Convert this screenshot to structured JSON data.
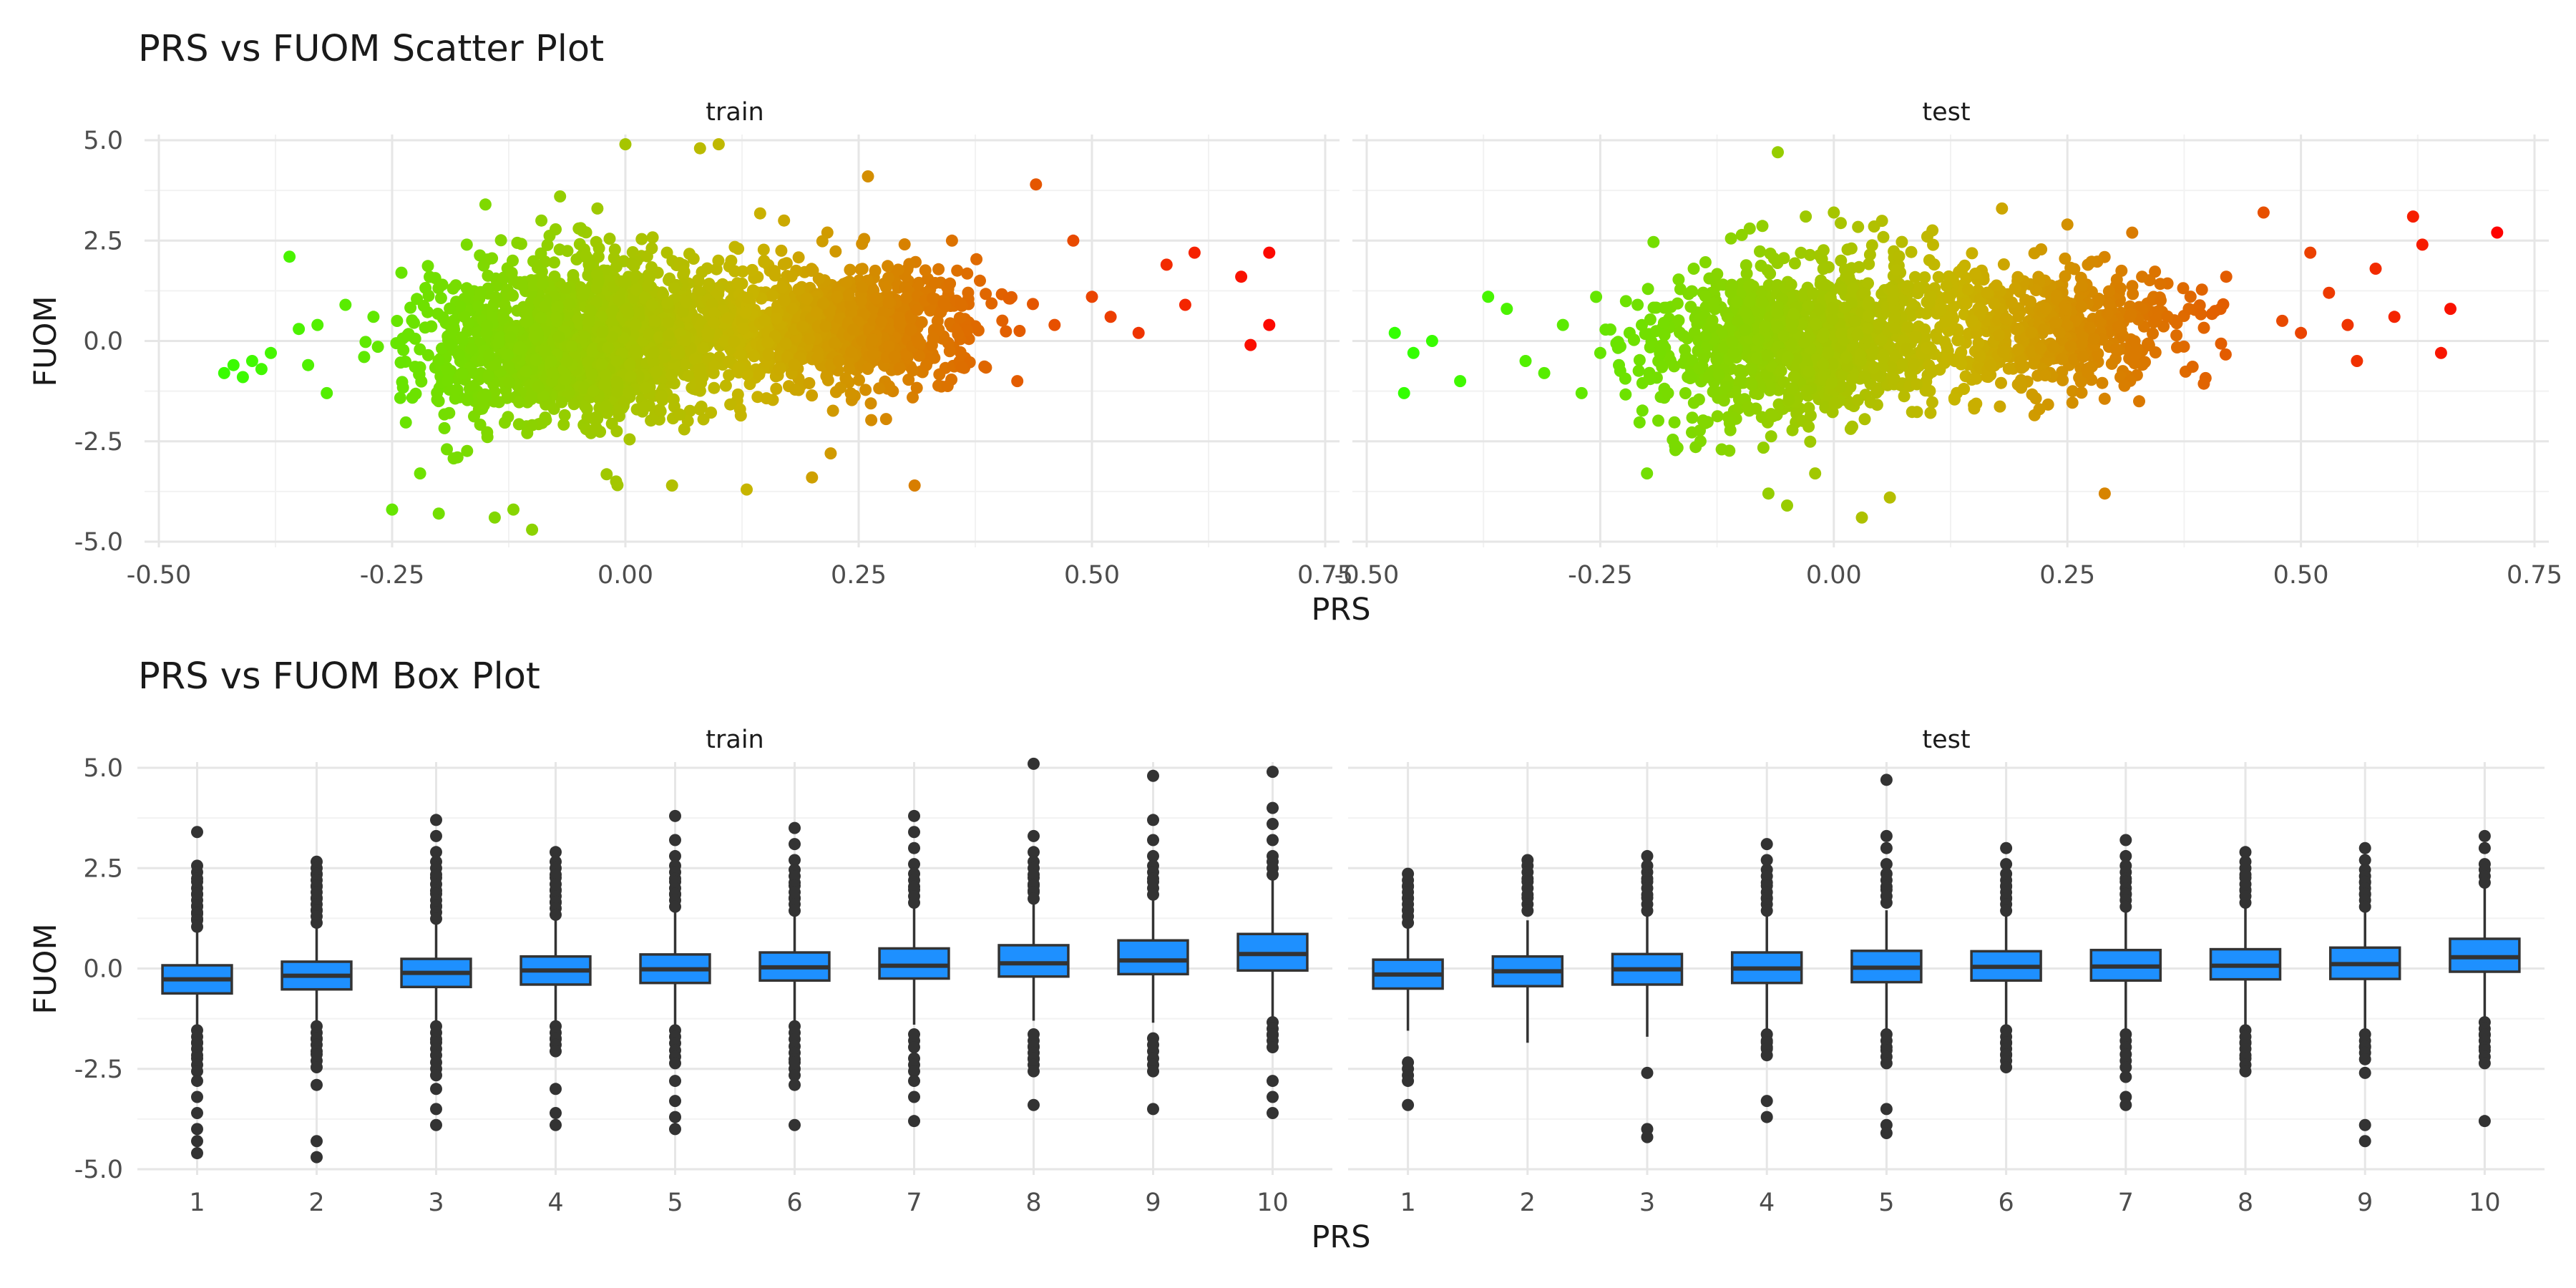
{
  "chart_data": [
    {
      "type": "scatter",
      "title": "PRS vs FUOM Scatter Plot",
      "xlabel": "PRS",
      "ylabel": "FUOM",
      "xlim": [
        -0.5,
        0.75
      ],
      "ylim": [
        -5.0,
        5.0
      ],
      "x_ticks": [
        "-0.50",
        "-0.25",
        "0.00",
        "0.25",
        "0.50",
        "0.75"
      ],
      "y_ticks": [
        "5.0",
        "2.5",
        "0.0",
        "-2.5",
        "-5.0"
      ],
      "grid": true,
      "legend": "none",
      "color_scale": {
        "low": "#33ff00",
        "mid": "#c8b400",
        "high": "#ff0000",
        "mapped_to": "PRS"
      },
      "facets": [
        {
          "name": "train",
          "description_points": [
            [
              -0.43,
              -0.8
            ],
            [
              -0.42,
              -0.6
            ],
            [
              -0.41,
              -0.9
            ],
            [
              -0.4,
              -0.5
            ],
            [
              -0.39,
              -0.7
            ],
            [
              -0.38,
              -0.3
            ],
            [
              -0.36,
              2.1
            ],
            [
              -0.35,
              0.3
            ],
            [
              -0.34,
              -0.6
            ],
            [
              -0.33,
              0.4
            ],
            [
              -0.32,
              -1.3
            ],
            [
              -0.3,
              0.9
            ],
            [
              -0.28,
              -0.4
            ],
            [
              -0.27,
              0.6
            ],
            [
              -0.25,
              -4.2
            ],
            [
              -0.24,
              1.7
            ],
            [
              -0.22,
              -3.3
            ],
            [
              -0.2,
              -4.3
            ],
            [
              -0.18,
              -2.9
            ],
            [
              -0.17,
              2.4
            ],
            [
              -0.15,
              3.4
            ],
            [
              -0.14,
              -4.4
            ],
            [
              -0.12,
              -4.2
            ],
            [
              -0.1,
              -4.7
            ],
            [
              -0.09,
              3.0
            ],
            [
              -0.07,
              3.6
            ],
            [
              -0.05,
              2.8
            ],
            [
              -0.03,
              3.3
            ],
            [
              -0.01,
              -3.5
            ],
            [
              0.0,
              4.9
            ],
            [
              0.05,
              -3.6
            ],
            [
              0.08,
              4.8
            ],
            [
              0.1,
              4.9
            ],
            [
              0.13,
              -3.7
            ],
            [
              0.17,
              3.0
            ],
            [
              0.2,
              -3.4
            ],
            [
              0.22,
              -2.8
            ],
            [
              0.26,
              4.1
            ],
            [
              0.31,
              -3.6
            ],
            [
              0.35,
              2.5
            ],
            [
              0.38,
              1.5
            ],
            [
              0.42,
              -1.0
            ],
            [
              0.44,
              3.9
            ],
            [
              0.46,
              0.4
            ],
            [
              0.48,
              2.5
            ],
            [
              0.5,
              1.1
            ],
            [
              0.52,
              0.6
            ],
            [
              0.55,
              0.2
            ],
            [
              0.58,
              1.9
            ],
            [
              0.6,
              0.9
            ],
            [
              0.61,
              2.2
            ],
            [
              0.66,
              1.6
            ],
            [
              0.67,
              -0.1
            ],
            [
              0.69,
              2.2
            ],
            [
              0.69,
              0.4
            ]
          ]
        },
        {
          "name": "test",
          "description_points": [
            [
              -0.47,
              0.2
            ],
            [
              -0.46,
              -1.3
            ],
            [
              -0.45,
              -0.3
            ],
            [
              -0.43,
              0.0
            ],
            [
              -0.4,
              -1.0
            ],
            [
              -0.37,
              1.1
            ],
            [
              -0.35,
              0.8
            ],
            [
              -0.33,
              -0.5
            ],
            [
              -0.31,
              -0.8
            ],
            [
              -0.29,
              0.4
            ],
            [
              -0.27,
              -1.3
            ],
            [
              -0.25,
              -0.3
            ],
            [
              -0.23,
              -0.6
            ],
            [
              -0.21,
              0.9
            ],
            [
              -0.2,
              -3.3
            ],
            [
              -0.17,
              -2.6
            ],
            [
              -0.15,
              1.8
            ],
            [
              -0.12,
              -2.7
            ],
            [
              -0.09,
              2.8
            ],
            [
              -0.07,
              -3.8
            ],
            [
              -0.06,
              4.7
            ],
            [
              -0.05,
              -4.1
            ],
            [
              -0.03,
              3.1
            ],
            [
              -0.02,
              -3.3
            ],
            [
              0.0,
              3.2
            ],
            [
              0.03,
              -4.4
            ],
            [
              0.06,
              -3.9
            ],
            [
              0.1,
              2.6
            ],
            [
              0.15,
              -1.6
            ],
            [
              0.18,
              3.3
            ],
            [
              0.22,
              -1.7
            ],
            [
              0.25,
              2.9
            ],
            [
              0.29,
              -3.8
            ],
            [
              0.33,
              1.6
            ],
            [
              0.38,
              0.8
            ],
            [
              0.42,
              1.6
            ],
            [
              0.46,
              3.2
            ],
            [
              0.48,
              0.5
            ],
            [
              0.5,
              0.2
            ],
            [
              0.51,
              2.2
            ],
            [
              0.53,
              1.2
            ],
            [
              0.55,
              0.4
            ],
            [
              0.56,
              -0.5
            ],
            [
              0.58,
              1.8
            ],
            [
              0.6,
              0.6
            ],
            [
              0.62,
              3.1
            ],
            [
              0.63,
              2.4
            ],
            [
              0.65,
              -0.3
            ],
            [
              0.66,
              0.8
            ],
            [
              0.71,
              2.7
            ]
          ]
        }
      ]
    },
    {
      "type": "box",
      "title": "PRS vs FUOM Box Plot",
      "xlabel": "PRS",
      "ylabel": "FUOM",
      "categories": [
        "1",
        "2",
        "3",
        "4",
        "5",
        "6",
        "7",
        "8",
        "9",
        "10"
      ],
      "ylim": [
        -5.0,
        5.0
      ],
      "y_ticks": [
        "5.0",
        "2.5",
        "0.0",
        "-2.5",
        "-5.0"
      ],
      "grid": true,
      "box_color": "#1e90ff",
      "facets": [
        {
          "name": "train",
          "boxes": [
            {
              "q1": -0.62,
              "median": -0.27,
              "q3": 0.08,
              "whisker_low": -1.65,
              "whisker_high": 1.1,
              "outliers": [
                3.4,
                2.4,
                2.0,
                1.7,
                1.4,
                1.2,
                -1.7,
                -2.0,
                -2.4,
                -2.8,
                -3.2,
                -3.6,
                -4.0,
                -4.3,
                -4.6
              ]
            },
            {
              "q1": -0.52,
              "median": -0.18,
              "q3": 0.17,
              "whisker_low": -1.5,
              "whisker_high": 1.2,
              "outliers": [
                2.5,
                2.2,
                1.9,
                1.6,
                1.3,
                -1.6,
                -1.9,
                -2.3,
                -2.9,
                -4.3,
                -4.7
              ]
            },
            {
              "q1": -0.46,
              "median": -0.11,
              "q3": 0.24,
              "whisker_low": -1.45,
              "whisker_high": 1.25,
              "outliers": [
                3.7,
                3.3,
                2.9,
                2.5,
                2.1,
                1.7,
                1.4,
                -1.6,
                -2.0,
                -2.5,
                -3.0,
                -3.5,
                -3.9
              ]
            },
            {
              "q1": -0.4,
              "median": -0.05,
              "q3": 0.3,
              "whisker_low": -1.35,
              "whisker_high": 1.3,
              "outliers": [
                2.9,
                2.5,
                2.1,
                1.8,
                1.5,
                -1.6,
                -1.9,
                -3.0,
                -3.6,
                -3.9
              ]
            },
            {
              "q1": -0.36,
              "median": -0.02,
              "q3": 0.35,
              "whisker_low": -1.4,
              "whisker_high": 1.4,
              "outliers": [
                3.8,
                3.2,
                2.8,
                2.4,
                2.0,
                1.7,
                -1.7,
                -2.2,
                -2.8,
                -3.3,
                -3.7,
                -4.0
              ]
            },
            {
              "q1": -0.3,
              "median": 0.03,
              "q3": 0.4,
              "whisker_low": -1.35,
              "whisker_high": 1.45,
              "outliers": [
                3.5,
                3.1,
                2.7,
                2.3,
                1.9,
                1.6,
                -1.6,
                -2.1,
                -2.5,
                -2.9,
                -3.9
              ]
            },
            {
              "q1": -0.25,
              "median": 0.07,
              "q3": 0.5,
              "whisker_low": -1.4,
              "whisker_high": 1.55,
              "outliers": [
                3.8,
                3.4,
                3.0,
                2.6,
                2.2,
                1.8,
                -1.8,
                -2.4,
                -2.8,
                -3.2,
                -3.8
              ]
            },
            {
              "q1": -0.2,
              "median": 0.13,
              "q3": 0.58,
              "whisker_low": -1.3,
              "whisker_high": 1.7,
              "outliers": [
                5.1,
                3.3,
                2.9,
                2.5,
                2.1,
                1.9,
                -1.8,
                -2.1,
                -2.4,
                -3.4
              ]
            },
            {
              "q1": -0.14,
              "median": 0.2,
              "q3": 0.7,
              "whisker_low": -1.35,
              "whisker_high": 1.8,
              "outliers": [
                4.8,
                3.7,
                3.2,
                2.8,
                2.4,
                2.0,
                -1.9,
                -2.4,
                -3.5
              ]
            },
            {
              "q1": -0.05,
              "median": 0.36,
              "q3": 0.86,
              "whisker_low": -1.4,
              "whisker_high": 2.2,
              "outliers": [
                4.9,
                4.0,
                3.6,
                3.2,
                2.8,
                2.5,
                -1.5,
                -1.8,
                -2.8,
                -3.2,
                -3.6
              ]
            }
          ]
        },
        {
          "name": "test",
          "boxes": [
            {
              "q1": -0.5,
              "median": -0.15,
              "q3": 0.22,
              "whisker_low": -1.55,
              "whisker_high": 1.15,
              "outliers": [
                2.2,
                1.9,
                1.6,
                1.3,
                -2.5,
                -2.8,
                -3.4
              ]
            },
            {
              "q1": -0.44,
              "median": -0.07,
              "q3": 0.3,
              "whisker_low": -1.85,
              "whisker_high": 1.2,
              "outliers": [
                2.7,
                2.4,
                2.0,
                1.6
              ]
            },
            {
              "q1": -0.4,
              "median": -0.02,
              "q3": 0.36,
              "whisker_low": -1.7,
              "whisker_high": 1.3,
              "outliers": [
                2.8,
                2.4,
                2.0,
                1.6,
                -2.6,
                -4.0,
                -4.2
              ]
            },
            {
              "q1": -0.36,
              "median": 0.0,
              "q3": 0.4,
              "whisker_low": -1.6,
              "whisker_high": 1.4,
              "outliers": [
                3.1,
                2.7,
                2.3,
                1.9,
                1.6,
                -1.8,
                -2.0,
                -3.3,
                -3.7
              ]
            },
            {
              "q1": -0.34,
              "median": 0.02,
              "q3": 0.44,
              "whisker_low": -1.6,
              "whisker_high": 1.45,
              "outliers": [
                4.7,
                3.3,
                3.0,
                2.6,
                2.2,
                1.8,
                -1.8,
                -2.2,
                -3.5,
                -3.9,
                -4.1
              ]
            },
            {
              "q1": -0.3,
              "median": 0.04,
              "q3": 0.43,
              "whisker_low": -1.55,
              "whisker_high": 1.45,
              "outliers": [
                3.0,
                2.6,
                2.2,
                1.9,
                1.6,
                -1.7,
                -2.0,
                -2.3
              ]
            },
            {
              "q1": -0.3,
              "median": 0.05,
              "q3": 0.46,
              "whisker_low": -1.5,
              "whisker_high": 1.5,
              "outliers": [
                3.2,
                2.8,
                2.4,
                2.0,
                1.7,
                -1.8,
                -2.3,
                -2.7,
                -3.2,
                -3.4
              ]
            },
            {
              "q1": -0.27,
              "median": 0.07,
              "q3": 0.48,
              "whisker_low": -1.5,
              "whisker_high": 1.5,
              "outliers": [
                2.9,
                2.5,
                2.1,
                1.8,
                -1.7,
                -2.0,
                -2.4
              ]
            },
            {
              "q1": -0.26,
              "median": 0.11,
              "q3": 0.52,
              "whisker_low": -1.6,
              "whisker_high": 1.55,
              "outliers": [
                3.0,
                2.7,
                2.3,
                2.0,
                1.7,
                -1.8,
                -2.1,
                -2.6,
                -3.9,
                -4.3
              ]
            },
            {
              "q1": -0.08,
              "median": 0.28,
              "q3": 0.74,
              "whisker_low": -1.4,
              "whisker_high": 2.0,
              "outliers": [
                3.3,
                3.0,
                2.6,
                2.3,
                -1.5,
                -1.8,
                -2.2,
                -3.8
              ]
            }
          ]
        }
      ]
    }
  ]
}
